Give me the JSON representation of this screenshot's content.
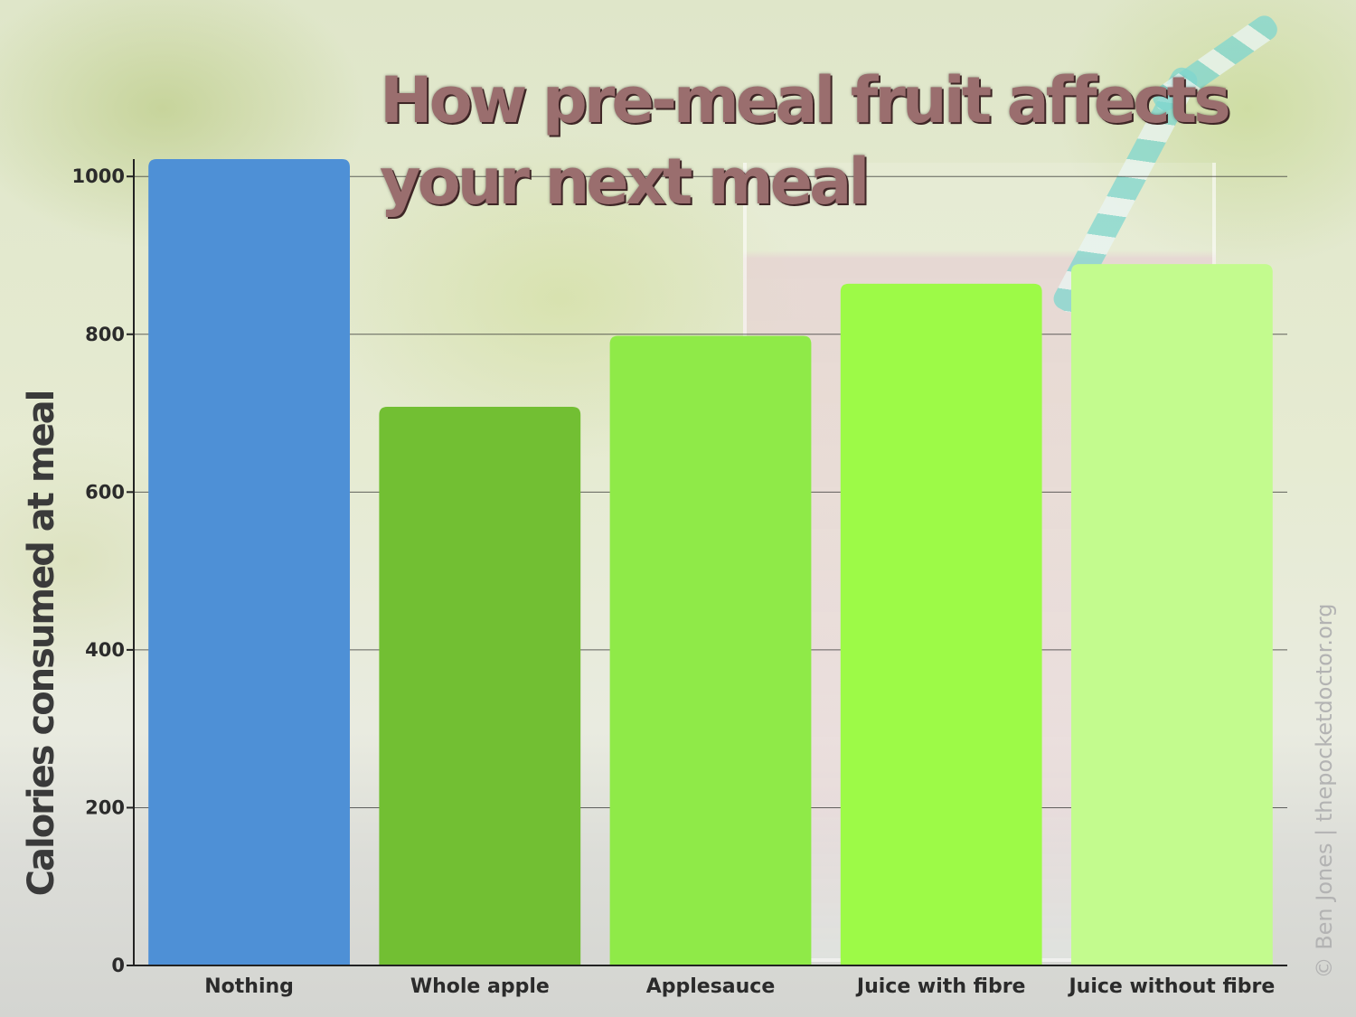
{
  "chart_data": {
    "type": "bar",
    "title": "How pre-meal fruit affects your next meal",
    "ylabel": "Calories consumed at meal",
    "xlabel": "",
    "categories": [
      "Nothing",
      "Whole apple",
      "Applesauce",
      "Juice with fibre",
      "Juice without fibre"
    ],
    "values": [
      1022,
      708,
      798,
      864,
      889
    ],
    "colors": [
      "#4e90d6",
      "#72bf33",
      "#8fea48",
      "#9dfa47",
      "#c3fb8e"
    ],
    "ylim": [
      0,
      1022
    ],
    "yticks": [
      0,
      200,
      400,
      600,
      800,
      1000
    ],
    "grid": true
  },
  "credit": "© Ben Jones | thepocketdoctor.org"
}
